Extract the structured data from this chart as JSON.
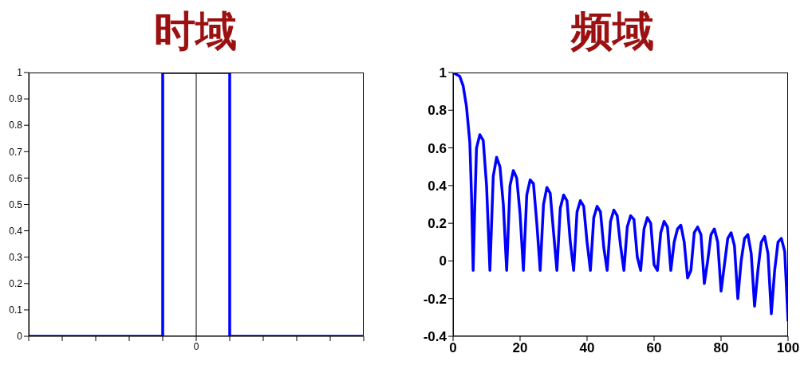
{
  "chart_data": [
    {
      "type": "step",
      "title": "时域",
      "categories": [
        null,
        null,
        null,
        null,
        null,
        "0",
        null,
        null,
        null,
        null,
        null
      ],
      "series": [
        {
          "color": "#0000ff",
          "values": [
            0,
            0,
            0,
            0,
            1,
            1,
            0,
            0,
            0,
            0,
            0
          ]
        }
      ],
      "ylim": [
        0,
        1
      ],
      "yticks": [
        0,
        0.1,
        0.2,
        0.3,
        0.4,
        0.5,
        0.6,
        0.7,
        0.8,
        0.9,
        1
      ],
      "ref_lines": [
        {
          "axis": "x",
          "value": "0",
          "color": "#000000"
        }
      ],
      "grid": false,
      "legend": false,
      "marker": "none",
      "line_style": "solid"
    },
    {
      "type": "line",
      "title": "频域",
      "x": [
        0,
        2,
        3,
        4,
        5,
        5.5,
        6,
        6.5,
        7,
        8,
        9,
        10,
        11,
        12,
        13,
        14,
        15,
        16,
        17,
        18,
        19,
        20,
        21,
        22,
        23,
        24,
        25,
        26,
        27,
        28,
        29,
        30,
        31,
        32,
        33,
        34,
        35,
        36,
        37,
        38,
        39,
        40,
        41,
        42,
        43,
        44,
        45,
        46,
        47,
        48,
        49,
        50,
        51,
        52,
        53,
        54,
        55,
        56,
        57,
        58,
        59,
        60,
        61,
        62,
        63,
        64,
        65,
        66,
        67,
        68,
        69,
        70,
        71,
        72,
        73,
        74,
        75,
        76,
        77,
        78,
        79,
        80,
        81,
        82,
        83,
        84,
        85,
        86,
        87,
        88,
        89,
        90,
        91,
        92,
        93,
        94,
        95,
        96,
        97,
        98,
        99,
        100
      ],
      "series": [
        {
          "color": "#0000ff",
          "values": [
            1,
            0.98,
            0.93,
            0.82,
            0.63,
            0.35,
            -0.05,
            0.3,
            0.6,
            0.67,
            0.64,
            0.4,
            -0.05,
            0.45,
            0.55,
            0.5,
            0.3,
            -0.05,
            0.4,
            0.48,
            0.44,
            0.25,
            -0.05,
            0.35,
            0.43,
            0.41,
            0.2,
            -0.05,
            0.3,
            0.39,
            0.36,
            0.15,
            -0.05,
            0.28,
            0.35,
            0.32,
            0.1,
            -0.05,
            0.26,
            0.32,
            0.29,
            0.1,
            -0.05,
            0.23,
            0.29,
            0.26,
            0.07,
            -0.05,
            0.21,
            0.27,
            0.24,
            0.08,
            -0.05,
            0.18,
            0.24,
            0.22,
            0.02,
            -0.05,
            0.17,
            0.23,
            0.2,
            -0.02,
            -0.05,
            0.15,
            0.21,
            0.18,
            -0.05,
            0.1,
            0.17,
            0.19,
            0.1,
            -0.09,
            -0.05,
            0.15,
            0.18,
            0.14,
            -0.12,
            0,
            0.14,
            0.17,
            0.1,
            -0.16,
            -0.02,
            0.12,
            0.15,
            0.08,
            -0.2,
            0,
            0.12,
            0.14,
            0.04,
            -0.24,
            -0.05,
            0.1,
            0.13,
            0.04,
            -0.28,
            -0.05,
            0.1,
            0.12,
            0.05,
            -0.32
          ]
        }
      ],
      "xlim": [
        0,
        100
      ],
      "xticks": [
        0,
        20,
        40,
        60,
        80,
        100
      ],
      "ylim": [
        -0.4,
        1
      ],
      "yticks": [
        -0.4,
        -0.2,
        0,
        0.2,
        0.4,
        0.6,
        0.8,
        1
      ],
      "grid": false,
      "legend": false,
      "marker": "none",
      "line_style": "solid"
    }
  ]
}
